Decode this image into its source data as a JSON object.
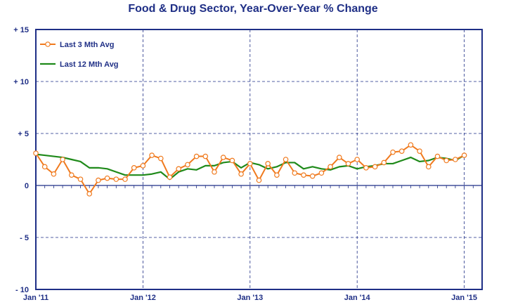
{
  "chart_data": {
    "type": "line",
    "title": "Food & Drug Sector, Year-Over-Year % Change",
    "xlabel": "",
    "ylabel": "",
    "ylim": [
      -10,
      15
    ],
    "xlim_months": [
      0,
      50
    ],
    "y_ticks": [
      {
        "value": 15,
        "label": "+ 15"
      },
      {
        "value": 10,
        "label": "+ 10"
      },
      {
        "value": 5,
        "label": "+ 5"
      },
      {
        "value": 0,
        "label": "0"
      },
      {
        "value": -5,
        "label": "- 5"
      },
      {
        "value": -10,
        "label": "- 10"
      }
    ],
    "x_ticks": [
      {
        "month": 0,
        "label": "Jan '11"
      },
      {
        "month": 12,
        "label": "Jan '12"
      },
      {
        "month": 24,
        "label": "Jan '13"
      },
      {
        "month": 36,
        "label": "Jan '14"
      },
      {
        "month": 48,
        "label": "Jan '15"
      }
    ],
    "grid": true,
    "legend_position": "top-left",
    "colors": {
      "title": "#1f2f86",
      "axis": "#1f2f86",
      "grid": "#1f2f86",
      "series_3mth": "#f07a1e",
      "series_12mth": "#1f8a1a"
    },
    "series": [
      {
        "name": "Last 3 Mth Avg",
        "style": "line-markers",
        "x_months": [
          0,
          1,
          2,
          3,
          4,
          5,
          6,
          7,
          8,
          9,
          10,
          11,
          12,
          13,
          14,
          15,
          16,
          17,
          18,
          19,
          20,
          21,
          22,
          23,
          24,
          25,
          26,
          27,
          28,
          29,
          30,
          31,
          32,
          33,
          34,
          35,
          36,
          37,
          38,
          39,
          40,
          41,
          42,
          43,
          44,
          45,
          46,
          47,
          48
        ],
        "values": [
          3.1,
          1.8,
          1.1,
          2.5,
          1.0,
          0.6,
          -0.8,
          0.5,
          0.7,
          0.6,
          0.6,
          1.7,
          1.9,
          2.9,
          2.6,
          0.8,
          1.6,
          2.0,
          2.8,
          2.8,
          1.3,
          2.7,
          2.4,
          1.1,
          2.1,
          0.5,
          2.1,
          1.0,
          2.5,
          1.2,
          1.0,
          0.9,
          1.2,
          1.8,
          2.7,
          2.1,
          2.5,
          1.7,
          1.8,
          2.2,
          3.2,
          3.3,
          3.9,
          3.3,
          1.8,
          2.8,
          2.4,
          2.5,
          2.9
        ]
      },
      {
        "name": "Last 12 Mth Avg",
        "style": "line",
        "x_months": [
          0,
          1,
          2,
          3,
          4,
          5,
          6,
          7,
          8,
          9,
          10,
          11,
          12,
          13,
          14,
          15,
          16,
          17,
          18,
          19,
          20,
          21,
          22,
          23,
          24,
          25,
          26,
          27,
          28,
          29,
          30,
          31,
          32,
          33,
          34,
          35,
          36,
          37,
          38,
          39,
          40,
          41,
          42,
          43,
          44,
          45,
          46,
          47,
          48
        ],
        "values": [
          3.0,
          2.9,
          2.8,
          2.7,
          2.5,
          2.3,
          1.7,
          1.7,
          1.6,
          1.3,
          1.0,
          1.0,
          1.0,
          1.1,
          1.3,
          0.6,
          1.3,
          1.6,
          1.5,
          1.9,
          1.9,
          2.2,
          2.3,
          1.7,
          2.2,
          2.0,
          1.6,
          1.8,
          2.2,
          2.2,
          1.6,
          1.8,
          1.6,
          1.5,
          1.8,
          1.9,
          1.6,
          1.8,
          1.9,
          2.1,
          2.1,
          2.4,
          2.7,
          2.3,
          2.4,
          2.7,
          2.6,
          2.4,
          2.9
        ]
      }
    ]
  }
}
